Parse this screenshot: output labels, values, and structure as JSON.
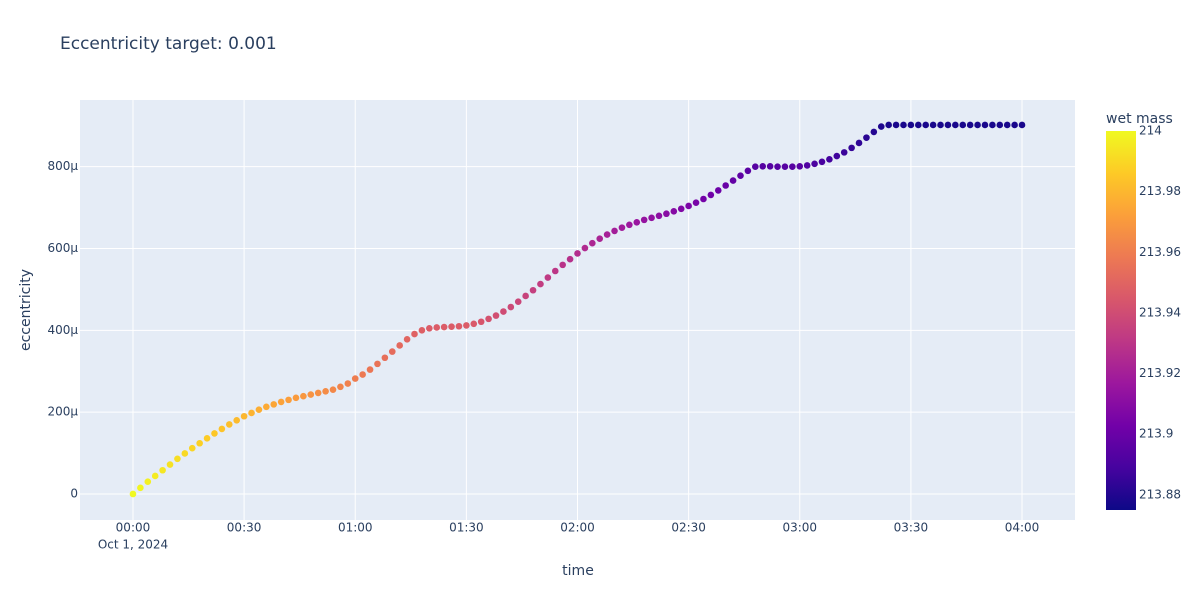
{
  "chart_data": {
    "type": "scatter",
    "title": "Eccentricity target: 0.001",
    "xlabel": "time",
    "ylabel": "eccentricity",
    "x_date_label": "Oct 1, 2024",
    "colorbar_title": "wet mass",
    "colorscale": [
      "#0d0887",
      "#46039f",
      "#7201a8",
      "#9c179e",
      "#bd3786",
      "#d8576b",
      "#ed7953",
      "#fb9f3a",
      "#fdca26",
      "#f0f921"
    ],
    "clim": [
      213.875,
      214
    ],
    "cticks": [
      213.88,
      213.9,
      213.92,
      213.94,
      213.96,
      213.98,
      214
    ],
    "xlim": [
      "2024-09-30 23:45:42",
      "2024-10-01 04:14:18"
    ],
    "ylim": [
      -6.36e-05,
      0.000963
    ],
    "xticks": [
      {
        "value": "2024-10-01 00:00",
        "label": "00:00"
      },
      {
        "value": "2024-10-01 00:30",
        "label": "00:30"
      },
      {
        "value": "2024-10-01 01:00",
        "label": "01:00"
      },
      {
        "value": "2024-10-01 01:30",
        "label": "01:30"
      },
      {
        "value": "2024-10-01 02:00",
        "label": "02:00"
      },
      {
        "value": "2024-10-01 02:30",
        "label": "02:30"
      },
      {
        "value": "2024-10-01 03:00",
        "label": "03:00"
      },
      {
        "value": "2024-10-01 03:30",
        "label": "03:30"
      },
      {
        "value": "2024-10-01 04:00",
        "label": "04:00"
      }
    ],
    "yticks": [
      0,
      {
        "value": 0.0002,
        "label": "200µ"
      },
      {
        "value": 0.0004,
        "label": "400µ"
      },
      {
        "value": 0.0006,
        "label": "600µ"
      },
      {
        "value": 0.0008,
        "label": "800µ"
      }
    ],
    "grid": true,
    "x": [
      "2024-10-01 00:00",
      "2024-10-01 00:02",
      "2024-10-01 00:04",
      "2024-10-01 00:06",
      "2024-10-01 00:08",
      "2024-10-01 00:10",
      "2024-10-01 00:12",
      "2024-10-01 00:14",
      "2024-10-01 00:16",
      "2024-10-01 00:18",
      "2024-10-01 00:20",
      "2024-10-01 00:22",
      "2024-10-01 00:24",
      "2024-10-01 00:26",
      "2024-10-01 00:28",
      "2024-10-01 00:30",
      "2024-10-01 00:32",
      "2024-10-01 00:34",
      "2024-10-01 00:36",
      "2024-10-01 00:38",
      "2024-10-01 00:40",
      "2024-10-01 00:42",
      "2024-10-01 00:44",
      "2024-10-01 00:46",
      "2024-10-01 00:48",
      "2024-10-01 00:50",
      "2024-10-01 00:52",
      "2024-10-01 00:54",
      "2024-10-01 00:56",
      "2024-10-01 00:58",
      "2024-10-01 01:00",
      "2024-10-01 01:02",
      "2024-10-01 01:04",
      "2024-10-01 01:06",
      "2024-10-01 01:08",
      "2024-10-01 01:10",
      "2024-10-01 01:12",
      "2024-10-01 01:14",
      "2024-10-01 01:16",
      "2024-10-01 01:18",
      "2024-10-01 01:20",
      "2024-10-01 01:22",
      "2024-10-01 01:24",
      "2024-10-01 01:26",
      "2024-10-01 01:28",
      "2024-10-01 01:30",
      "2024-10-01 01:32",
      "2024-10-01 01:34",
      "2024-10-01 01:36",
      "2024-10-01 01:38",
      "2024-10-01 01:40",
      "2024-10-01 01:42",
      "2024-10-01 01:44",
      "2024-10-01 01:46",
      "2024-10-01 01:48",
      "2024-10-01 01:50",
      "2024-10-01 01:52",
      "2024-10-01 01:54",
      "2024-10-01 01:56",
      "2024-10-01 01:58",
      "2024-10-01 02:00",
      "2024-10-01 02:02",
      "2024-10-01 02:04",
      "2024-10-01 02:06",
      "2024-10-01 02:08",
      "2024-10-01 02:10",
      "2024-10-01 02:12",
      "2024-10-01 02:14",
      "2024-10-01 02:16",
      "2024-10-01 02:18",
      "2024-10-01 02:20",
      "2024-10-01 02:22",
      "2024-10-01 02:24",
      "2024-10-01 02:26",
      "2024-10-01 02:28",
      "2024-10-01 02:30",
      "2024-10-01 02:32",
      "2024-10-01 02:34",
      "2024-10-01 02:36",
      "2024-10-01 02:38",
      "2024-10-01 02:40",
      "2024-10-01 02:42",
      "2024-10-01 02:44",
      "2024-10-01 02:46",
      "2024-10-01 02:48",
      "2024-10-01 02:50",
      "2024-10-01 02:52",
      "2024-10-01 02:54",
      "2024-10-01 02:56",
      "2024-10-01 02:58",
      "2024-10-01 03:00",
      "2024-10-01 03:02",
      "2024-10-01 03:04",
      "2024-10-01 03:06",
      "2024-10-01 03:08",
      "2024-10-01 03:10",
      "2024-10-01 03:12",
      "2024-10-01 03:14",
      "2024-10-01 03:16",
      "2024-10-01 03:18",
      "2024-10-01 03:20",
      "2024-10-01 03:22",
      "2024-10-01 03:24",
      "2024-10-01 03:26",
      "2024-10-01 03:28",
      "2024-10-01 03:30",
      "2024-10-01 03:32",
      "2024-10-01 03:34",
      "2024-10-01 03:36",
      "2024-10-01 03:38",
      "2024-10-01 03:40",
      "2024-10-01 03:42",
      "2024-10-01 03:44",
      "2024-10-01 03:46",
      "2024-10-01 03:48",
      "2024-10-01 03:50",
      "2024-10-01 03:52",
      "2024-10-01 03:54",
      "2024-10-01 03:56",
      "2024-10-01 03:58",
      "2024-10-01 04:00"
    ],
    "values": [
      0,
      1.5e-05,
      3e-05,
      4.4e-05,
      5.8e-05,
      7.2e-05,
      8.6e-05,
      9.9e-05,
      0.000112,
      0.000124,
      0.000136,
      0.000148,
      0.000159,
      0.00017,
      0.00018,
      0.00019,
      0.000198,
      0.000206,
      0.000213,
      0.000219,
      0.000225,
      0.00023,
      0.000235,
      0.000239,
      0.000243,
      0.000247,
      0.000251,
      0.000255,
      0.000262,
      0.00027,
      0.000282,
      0.000292,
      0.000304,
      0.000318,
      0.000333,
      0.000348,
      0.000363,
      0.000378,
      0.000391,
      0.0004,
      0.000405,
      0.000407,
      0.000408,
      0.000409,
      0.00041,
      0.000412,
      0.000416,
      0.000421,
      0.000428,
      0.000436,
      0.000446,
      0.000457,
      0.00047,
      0.000484,
      0.000498,
      0.000513,
      0.000529,
      0.000545,
      0.00056,
      0.000574,
      0.000588,
      0.000601,
      0.000613,
      0.000624,
      0.000634,
      0.000643,
      0.000651,
      0.000658,
      0.000664,
      0.00067,
      0.000675,
      0.00068,
      0.000685,
      0.000691,
      0.000697,
      0.000704,
      0.000712,
      0.000721,
      0.000731,
      0.000742,
      0.000754,
      0.000766,
      0.000778,
      0.00079,
      0.0008,
      0.000801,
      0.000801,
      0.0008,
      0.0008,
      0.0008,
      0.000801,
      0.000803,
      0.000807,
      0.000812,
      0.000818,
      0.000826,
      0.000835,
      0.000846,
      0.000858,
      0.000871,
      0.000885,
      0.000898,
      0.000902,
      0.000902,
      0.000902,
      0.000902,
      0.000902,
      0.000902,
      0.000902,
      0.000902,
      0.000902,
      0.000902,
      0.000902,
      0.000902,
      0.000902,
      0.000902,
      0.000902,
      0.000902,
      0.000902,
      0.000902,
      0.000902
    ],
    "marker_color_values": [
      214,
      213.9987,
      213.9973,
      213.996,
      213.9946,
      213.9933,
      213.992,
      213.9906,
      213.9893,
      213.9879,
      213.9866,
      213.9853,
      213.9839,
      213.9826,
      213.9812,
      213.9799,
      213.9786,
      213.9772,
      213.9759,
      213.9745,
      213.9732,
      213.9719,
      213.9705,
      213.9692,
      213.9678,
      213.9665,
      213.9652,
      213.9638,
      213.9625,
      213.9611,
      213.9598,
      213.9585,
      213.9571,
      213.9558,
      213.9544,
      213.9531,
      213.9518,
      213.9504,
      213.9491,
      213.9477,
      213.9464,
      213.9464,
      213.9464,
      213.9464,
      213.9464,
      213.9464,
      213.9451,
      213.9437,
      213.9424,
      213.941,
      213.9397,
      213.9384,
      213.937,
      213.9357,
      213.9343,
      213.933,
      213.9317,
      213.9303,
      213.929,
      213.9276,
      213.9263,
      213.925,
      213.9236,
      213.9223,
      213.9209,
      213.9196,
      213.9183,
      213.9169,
      213.9156,
      213.9142,
      213.9129,
      213.9116,
      213.9102,
      213.9089,
      213.9075,
      213.9062,
      213.9049,
      213.9035,
      213.9022,
      213.9008,
      213.8995,
      213.8982,
      213.8968,
      213.8955,
      213.8941,
      213.8941,
      213.8941,
      213.8941,
      213.8941,
      213.8941,
      213.8941,
      213.8928,
      213.8914,
      213.8901,
      213.8887,
      213.8874,
      213.8861,
      213.8847,
      213.8834,
      213.882,
      213.8807,
      213.8794,
      213.878,
      213.878,
      213.878,
      213.878,
      213.878,
      213.878,
      213.878,
      213.878,
      213.878,
      213.878,
      213.878,
      213.878,
      213.878,
      213.878,
      213.878,
      213.878,
      213.878,
      213.878,
      213.878
    ]
  }
}
